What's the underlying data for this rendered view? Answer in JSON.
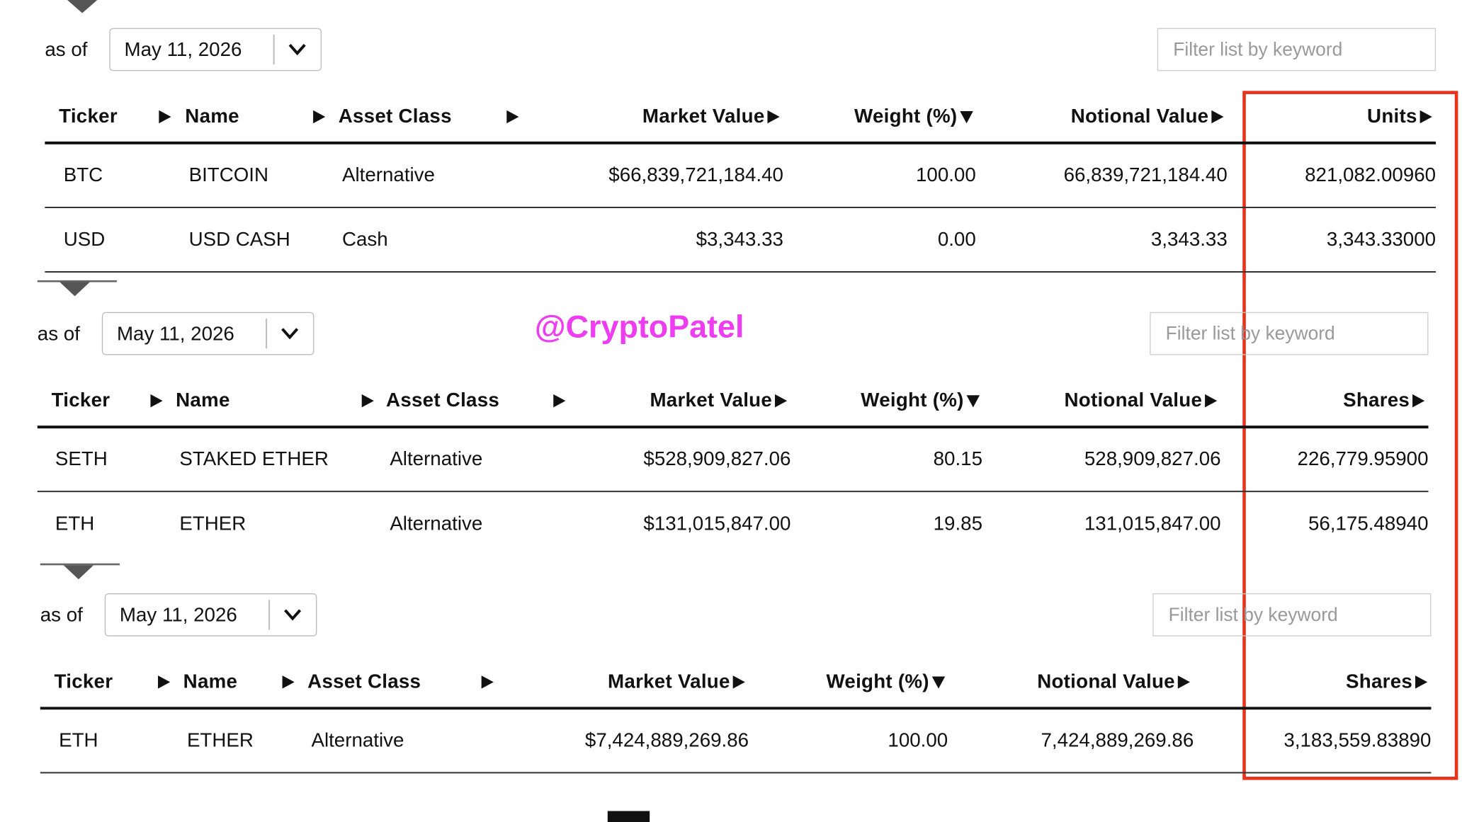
{
  "watermark": "@CryptoPatel",
  "tables": [
    {
      "as_of_label": "as of",
      "date": "May 11, 2026",
      "filter_placeholder": "Filter list by keyword",
      "columns": [
        "Ticker",
        "Name",
        "Asset Class",
        "Market Value",
        "Weight (%)",
        "Notional Value",
        "Units"
      ],
      "rows": [
        [
          "BTC",
          "BITCOIN",
          "Alternative",
          "$66,839,721,184.40",
          "100.00",
          "66,839,721,184.40",
          "821,082.00960"
        ],
        [
          "USD",
          "USD CASH",
          "Cash",
          "$3,343.33",
          "0.00",
          "3,343.33",
          "3,343.33000"
        ]
      ]
    },
    {
      "as_of_label": "as of",
      "date": "May 11, 2026",
      "filter_placeholder": "Filter list by keyword",
      "columns": [
        "Ticker",
        "Name",
        "Asset Class",
        "Market Value",
        "Weight (%)",
        "Notional Value",
        "Shares"
      ],
      "rows": [
        [
          "SETH",
          "STAKED ETHER",
          "Alternative",
          "$528,909,827.06",
          "80.15",
          "528,909,827.06",
          "226,779.95900"
        ],
        [
          "ETH",
          "ETHER",
          "Alternative",
          "$131,015,847.00",
          "19.85",
          "131,015,847.00",
          "56,175.48940"
        ]
      ]
    },
    {
      "as_of_label": "as of",
      "date": "May 11, 2026",
      "filter_placeholder": "Filter list by keyword",
      "columns": [
        "Ticker",
        "Name",
        "Asset Class",
        "Market Value",
        "Weight (%)",
        "Notional Value",
        "Shares"
      ],
      "rows": [
        [
          "ETH",
          "ETHER",
          "Alternative",
          "$7,424,889,269.86",
          "100.00",
          "7,424,889,269.86",
          "3,183,559.83890"
        ]
      ]
    }
  ]
}
